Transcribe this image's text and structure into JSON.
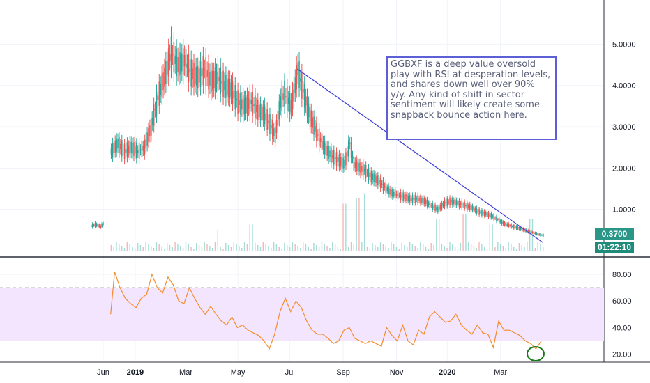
{
  "chart_data": [
    {
      "type": "candlestick",
      "symbol": "GGBXF",
      "ylim": [
        0,
        5.9
      ],
      "y_ticks": [
        "1.0000",
        "2.0000",
        "3.0000",
        "4.0000",
        "5.0000"
      ],
      "last_price": "0.3700",
      "countdown": "01:22:10",
      "series": [
        {
          "values": [
            [
              0,
              0.6
            ],
            [
              3,
              0.63
            ],
            [
              5,
              0.62
            ],
            [
              7,
              0.58
            ],
            [
              9,
              0.65
            ]
          ]
        },
        {
          "values": [
            [
              15,
              2.4
            ],
            [
              20,
              2.6
            ],
            [
              25,
              2.4
            ],
            [
              30,
              2.5
            ],
            [
              35,
              2.4
            ],
            [
              40,
              2.5
            ],
            [
              45,
              3.0
            ],
            [
              50,
              3.7
            ],
            [
              55,
              4.2
            ],
            [
              60,
              4.8
            ],
            [
              65,
              4.5
            ],
            [
              70,
              4.6
            ],
            [
              75,
              4.3
            ],
            [
              80,
              4.2
            ],
            [
              85,
              4.4
            ],
            [
              90,
              4.1
            ],
            [
              95,
              4.2
            ],
            [
              100,
              4.0
            ],
            [
              105,
              3.9
            ],
            [
              110,
              3.6
            ],
            [
              115,
              3.5
            ],
            [
              120,
              3.6
            ],
            [
              125,
              3.4
            ],
            [
              130,
              3.3
            ],
            [
              135,
              3.0
            ],
            [
              138,
              2.8
            ],
            [
              142,
              3.6
            ],
            [
              145,
              3.8
            ],
            [
              150,
              3.5
            ],
            [
              153,
              4.0
            ],
            [
              155,
              4.4
            ],
            [
              158,
              4.0
            ],
            [
              162,
              3.5
            ],
            [
              166,
              3.1
            ],
            [
              170,
              2.8
            ],
            [
              175,
              2.5
            ],
            [
              180,
              2.3
            ],
            [
              185,
              2.2
            ],
            [
              190,
              2.1
            ],
            [
              194,
              2.6
            ],
            [
              197,
              2.1
            ],
            [
              202,
              2.0
            ],
            [
              205,
              1.95
            ],
            [
              210,
              1.8
            ],
            [
              215,
              1.7
            ],
            [
              220,
              1.55
            ],
            [
              225,
              1.4
            ],
            [
              230,
              1.35
            ],
            [
              235,
              1.3
            ],
            [
              240,
              1.25
            ],
            [
              245,
              1.25
            ],
            [
              250,
              1.2
            ],
            [
              255,
              1.1
            ],
            [
              260,
              1.0
            ],
            [
              265,
              1.15
            ],
            [
              270,
              1.2
            ],
            [
              275,
              1.15
            ],
            [
              280,
              1.1
            ],
            [
              285,
              1.05
            ],
            [
              290,
              0.95
            ],
            [
              295,
              0.9
            ],
            [
              300,
              0.85
            ],
            [
              305,
              0.75
            ],
            [
              310,
              0.65
            ],
            [
              315,
              0.6
            ],
            [
              320,
              0.55
            ],
            [
              325,
              0.5
            ],
            [
              330,
              0.45
            ],
            [
              335,
              0.4
            ],
            [
              339,
              0.37
            ]
          ]
        }
      ],
      "trendline": {
        "start": [
          155,
          4.4
        ],
        "end": [
          339,
          0.2
        ]
      },
      "volume": [
        {
          "x": 95,
          "v": 0.2
        },
        {
          "x": 120,
          "v": 0.25
        },
        {
          "x": 190,
          "v": 0.45
        },
        {
          "x": 200,
          "v": 0.5
        },
        {
          "x": 205,
          "v": 0.55
        },
        {
          "x": 260,
          "v": 0.3
        },
        {
          "x": 280,
          "v": 0.35
        },
        {
          "x": 300,
          "v": 0.25
        },
        {
          "x": 330,
          "v": 0.3
        }
      ]
    },
    {
      "type": "line",
      "indicator": "RSI",
      "ylim": [
        14,
        90
      ],
      "y_ticks": [
        "20.00",
        "40.00",
        "60.00",
        "80.00"
      ],
      "band": [
        30,
        70
      ],
      "x": [
        15,
        18,
        22,
        26,
        30,
        34,
        38,
        42,
        46,
        50,
        54,
        58,
        62,
        66,
        70,
        74,
        78,
        82,
        86,
        90,
        94,
        98,
        102,
        106,
        110,
        114,
        118,
        122,
        126,
        130,
        134,
        138,
        142,
        146,
        150,
        154,
        158,
        162,
        166,
        170,
        174,
        178,
        182,
        186,
        190,
        194,
        198,
        202,
        206,
        210,
        214,
        218,
        222,
        226,
        230,
        234,
        238,
        242,
        246,
        250,
        254,
        258,
        262,
        266,
        270,
        274,
        278,
        282,
        286,
        290,
        294,
        298,
        302,
        306,
        310,
        314,
        318,
        322,
        326,
        330,
        334,
        338
      ],
      "values": [
        50,
        82,
        70,
        62,
        58,
        55,
        62,
        65,
        80,
        70,
        66,
        78,
        72,
        60,
        58,
        70,
        62,
        55,
        50,
        56,
        50,
        45,
        42,
        48,
        40,
        42,
        38,
        36,
        34,
        30,
        24,
        35,
        52,
        62,
        52,
        60,
        55,
        45,
        38,
        35,
        35,
        32,
        28,
        30,
        38,
        40,
        32,
        30,
        28,
        30,
        28,
        26,
        40,
        34,
        30,
        42,
        30,
        27,
        38,
        35,
        48,
        52,
        48,
        44,
        45,
        50,
        42,
        38,
        35,
        42,
        36,
        35,
        25,
        45,
        38,
        38,
        36,
        34,
        30,
        28,
        24,
        30
      ]
    }
  ],
  "annotation": "GGBXF is a deep value oversold play with RSI at desperation levels, and shares down well over 90% y/y. Any kind of shift in sector sentiment will likely create some snapback bounce action here.",
  "x_axis": [
    "Jun",
    "2019",
    "Mar",
    "May",
    "Jul",
    "Sep",
    "Nov",
    "2020",
    "Mar"
  ],
  "colors": {
    "up": "#26a69a",
    "down": "#ef5350",
    "rsi": "#f48c2c",
    "band": "#f3e5fd",
    "trendline": "#3c3cd8",
    "circle": "#1b7a1b",
    "last_price_tag": "#2a9688",
    "countdown_tag": "#1f8b7a"
  }
}
